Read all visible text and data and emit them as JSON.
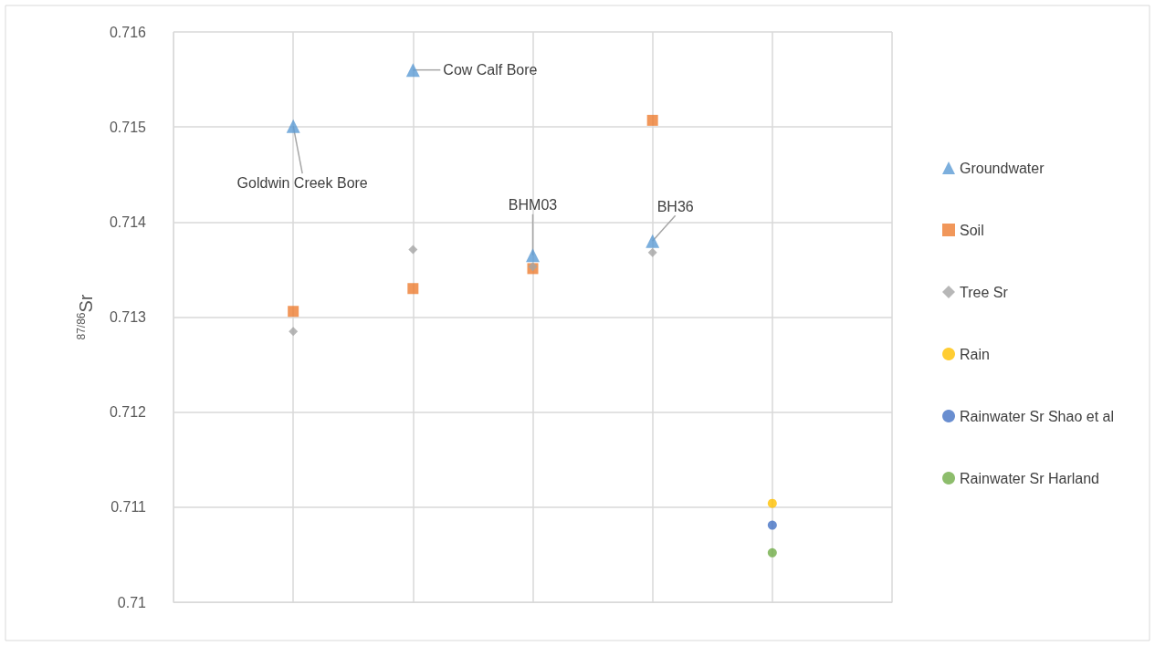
{
  "chart_data": {
    "type": "scatter",
    "ylabel": "$^{87/86}$Sr",
    "categories": [
      null,
      null,
      null,
      null,
      null,
      null,
      null
    ],
    "ylim": [
      0.71,
      0.716
    ],
    "yticks": [
      0.71,
      0.711,
      0.712,
      0.713,
      0.714,
      0.715,
      0.716
    ],
    "tick_labels": "y",
    "grid": true,
    "legend": "right",
    "series": [
      {
        "name": "Groundwater",
        "color": "#5b9bd5",
        "marker": "triangle",
        "values": [
          null,
          0.71501,
          0.7156,
          0.71365,
          0.7138,
          null,
          null
        ]
      },
      {
        "name": "Soil",
        "color": "#ed7d31",
        "marker": "square",
        "values": [
          null,
          0.71306,
          0.7133,
          0.71351,
          0.71507,
          null,
          null
        ]
      },
      {
        "name": "Tree Sr",
        "color": "#a5a5a5",
        "marker": "diamond",
        "values": [
          null,
          0.71285,
          0.71371,
          0.71353,
          0.71368,
          null,
          null
        ]
      },
      {
        "name": "Rain",
        "color": "#ffc000",
        "marker": "circle",
        "values": [
          null,
          null,
          null,
          null,
          null,
          0.71104,
          null
        ]
      },
      {
        "name": "Rainwater Sr Shao et al",
        "color": "#4472c4",
        "marker": "circle",
        "values": [
          null,
          null,
          null,
          null,
          null,
          0.71081,
          null
        ]
      },
      {
        "name": "Rainwater Sr Harland",
        "color": "#70ad47",
        "marker": "circle",
        "values": [
          null,
          null,
          null,
          null,
          null,
          0.71052,
          null
        ]
      }
    ],
    "annotations": [
      "Goldwin Creek Bore",
      "Cow Calf Bore",
      "BHM03",
      "BH36"
    ]
  }
}
